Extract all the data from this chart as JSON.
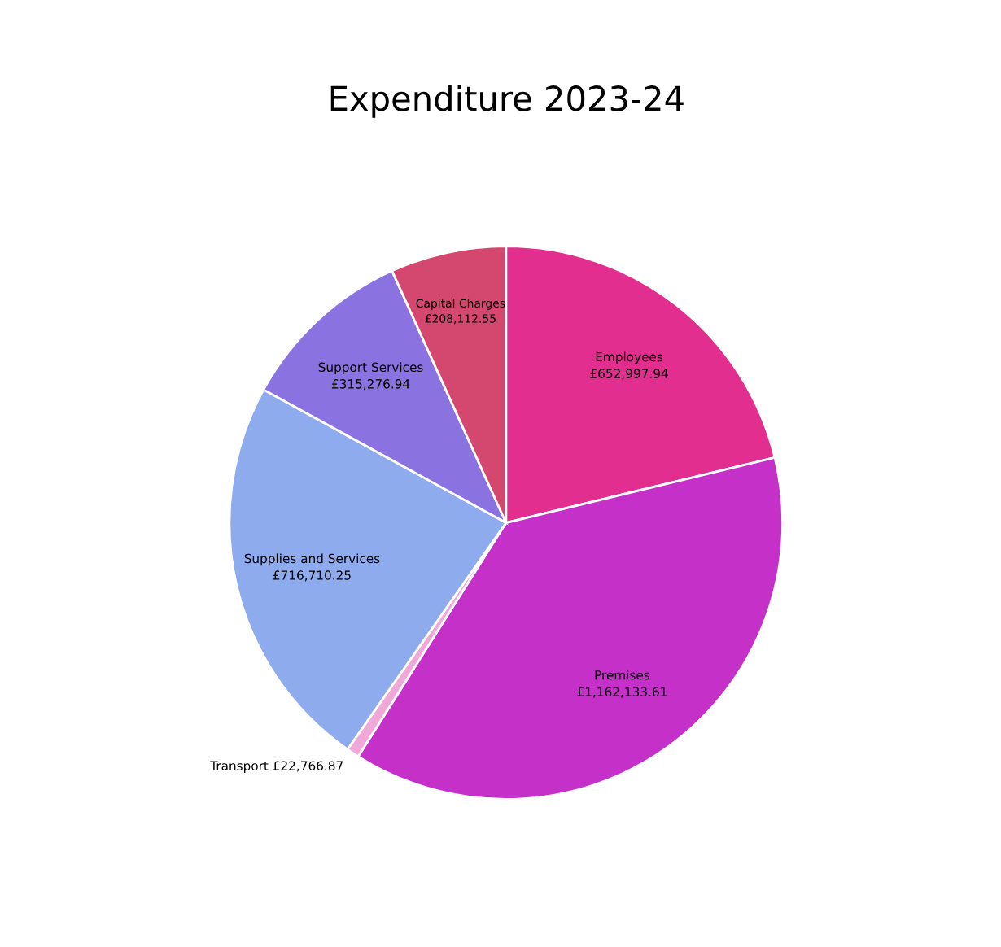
{
  "chart_data": {
    "type": "pie",
    "title": "Expenditure 2023-24",
    "categories": [
      "Employees",
      "Premises",
      "Transport",
      "Supplies and Services",
      "Support Services",
      "Capital Charges"
    ],
    "values": [
      652997.94,
      1162133.61,
      22766.87,
      716710.25,
      315276.94,
      208112.55
    ],
    "value_labels": [
      "£652,997.94",
      "£1,162,133.61",
      "£22,766.87",
      "£716,710.25",
      "£315,276.94",
      "£208,112.55"
    ],
    "colors": [
      "#e22e8f",
      "#c530c9",
      "#f0a8d8",
      "#8eabee",
      "#8a72e0",
      "#d4486f"
    ],
    "legend": false
  }
}
